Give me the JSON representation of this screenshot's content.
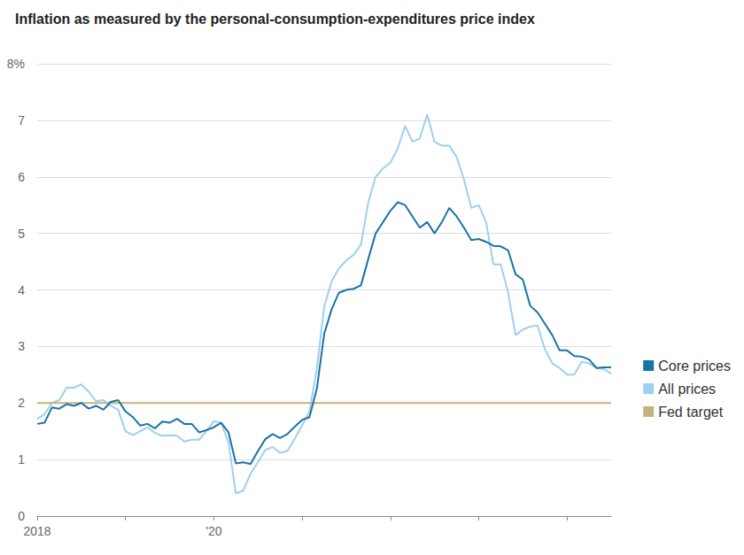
{
  "chart_data": {
    "type": "line",
    "title": "Inflation as measured by the personal-consumption-expenditures price index",
    "categories": [
      "2018",
      null,
      null,
      null,
      null,
      null,
      null,
      null,
      null,
      null,
      null,
      null,
      null,
      null,
      null,
      null,
      null,
      null,
      null,
      null,
      null,
      null,
      null,
      null,
      "'20",
      null,
      null,
      null,
      null,
      null,
      null,
      null,
      null,
      null,
      null,
      null,
      null,
      null,
      null,
      null,
      null,
      null,
      null,
      null,
      null,
      null,
      null,
      null,
      null,
      null,
      null,
      null,
      null,
      null,
      null,
      null,
      null,
      null,
      null,
      null,
      null,
      null,
      null,
      null,
      null,
      null,
      null,
      null,
      null,
      null,
      null,
      null,
      null,
      null,
      null,
      null,
      null,
      null,
      null
    ],
    "series": [
      {
        "name": "Core prices",
        "color": "#1a73a6",
        "values": [
          1.63,
          1.65,
          1.92,
          1.9,
          1.98,
          1.95,
          2.0,
          1.9,
          1.95,
          1.88,
          2.02,
          2.05,
          1.85,
          1.75,
          1.6,
          1.63,
          1.55,
          1.67,
          1.65,
          1.72,
          1.63,
          1.63,
          1.48,
          1.52,
          1.57,
          1.65,
          1.48,
          0.93,
          0.95,
          0.92,
          1.15,
          1.36,
          1.45,
          1.38,
          1.45,
          1.58,
          1.7,
          1.75,
          2.25,
          3.22,
          3.65,
          3.95,
          4.0,
          4.02,
          4.08,
          4.55,
          5.0,
          5.2,
          5.4,
          5.55,
          5.5,
          5.3,
          5.1,
          5.2,
          5.0,
          5.2,
          5.45,
          5.3,
          5.1,
          4.88,
          4.9,
          4.85,
          4.78,
          4.77,
          4.7,
          4.28,
          4.18,
          3.72,
          3.6,
          3.4,
          3.2,
          2.93,
          2.93,
          2.83,
          2.82,
          2.77,
          2.62,
          2.63,
          2.63
        ]
      },
      {
        "name": "All prices",
        "color": "#9dd0ee",
        "values": [
          1.72,
          1.8,
          2.0,
          2.05,
          2.27,
          2.27,
          2.33,
          2.2,
          2.03,
          2.05,
          1.95,
          1.88,
          1.5,
          1.43,
          1.5,
          1.57,
          1.47,
          1.42,
          1.43,
          1.42,
          1.32,
          1.35,
          1.35,
          1.5,
          1.68,
          1.65,
          1.3,
          0.4,
          0.45,
          0.75,
          0.95,
          1.17,
          1.22,
          1.12,
          1.15,
          1.37,
          1.6,
          1.85,
          2.6,
          3.7,
          4.15,
          4.38,
          4.52,
          4.62,
          4.8,
          5.55,
          6.0,
          6.15,
          6.25,
          6.5,
          6.9,
          6.62,
          6.68,
          7.1,
          6.62,
          6.55,
          6.55,
          6.35,
          5.95,
          5.45,
          5.5,
          5.2,
          4.45,
          4.45,
          3.95,
          3.2,
          3.3,
          3.35,
          3.37,
          2.95,
          2.7,
          2.62,
          2.5,
          2.5,
          2.73,
          2.7,
          2.62,
          2.6,
          2.52
        ]
      },
      {
        "name": "Fed target",
        "color": "#c2b47c",
        "values": [
          2,
          2,
          2,
          2,
          2,
          2,
          2,
          2,
          2,
          2,
          2,
          2,
          2,
          2,
          2,
          2,
          2,
          2,
          2,
          2,
          2,
          2,
          2,
          2,
          2,
          2,
          2,
          2,
          2,
          2,
          2,
          2,
          2,
          2,
          2,
          2,
          2,
          2,
          2,
          2,
          2,
          2,
          2,
          2,
          2,
          2,
          2,
          2,
          2,
          2,
          2,
          2,
          2,
          2,
          2,
          2,
          2,
          2,
          2,
          2,
          2,
          2,
          2,
          2,
          2,
          2,
          2,
          2,
          2,
          2,
          2,
          2,
          2,
          2,
          2,
          2,
          2,
          2,
          2
        ]
      }
    ],
    "ylim": [
      0,
      8
    ],
    "yticks": [
      0,
      1,
      2,
      3,
      4,
      5,
      6,
      7,
      {
        "value": 8,
        "label": "8%"
      }
    ],
    "grid": true,
    "legend": "right"
  }
}
